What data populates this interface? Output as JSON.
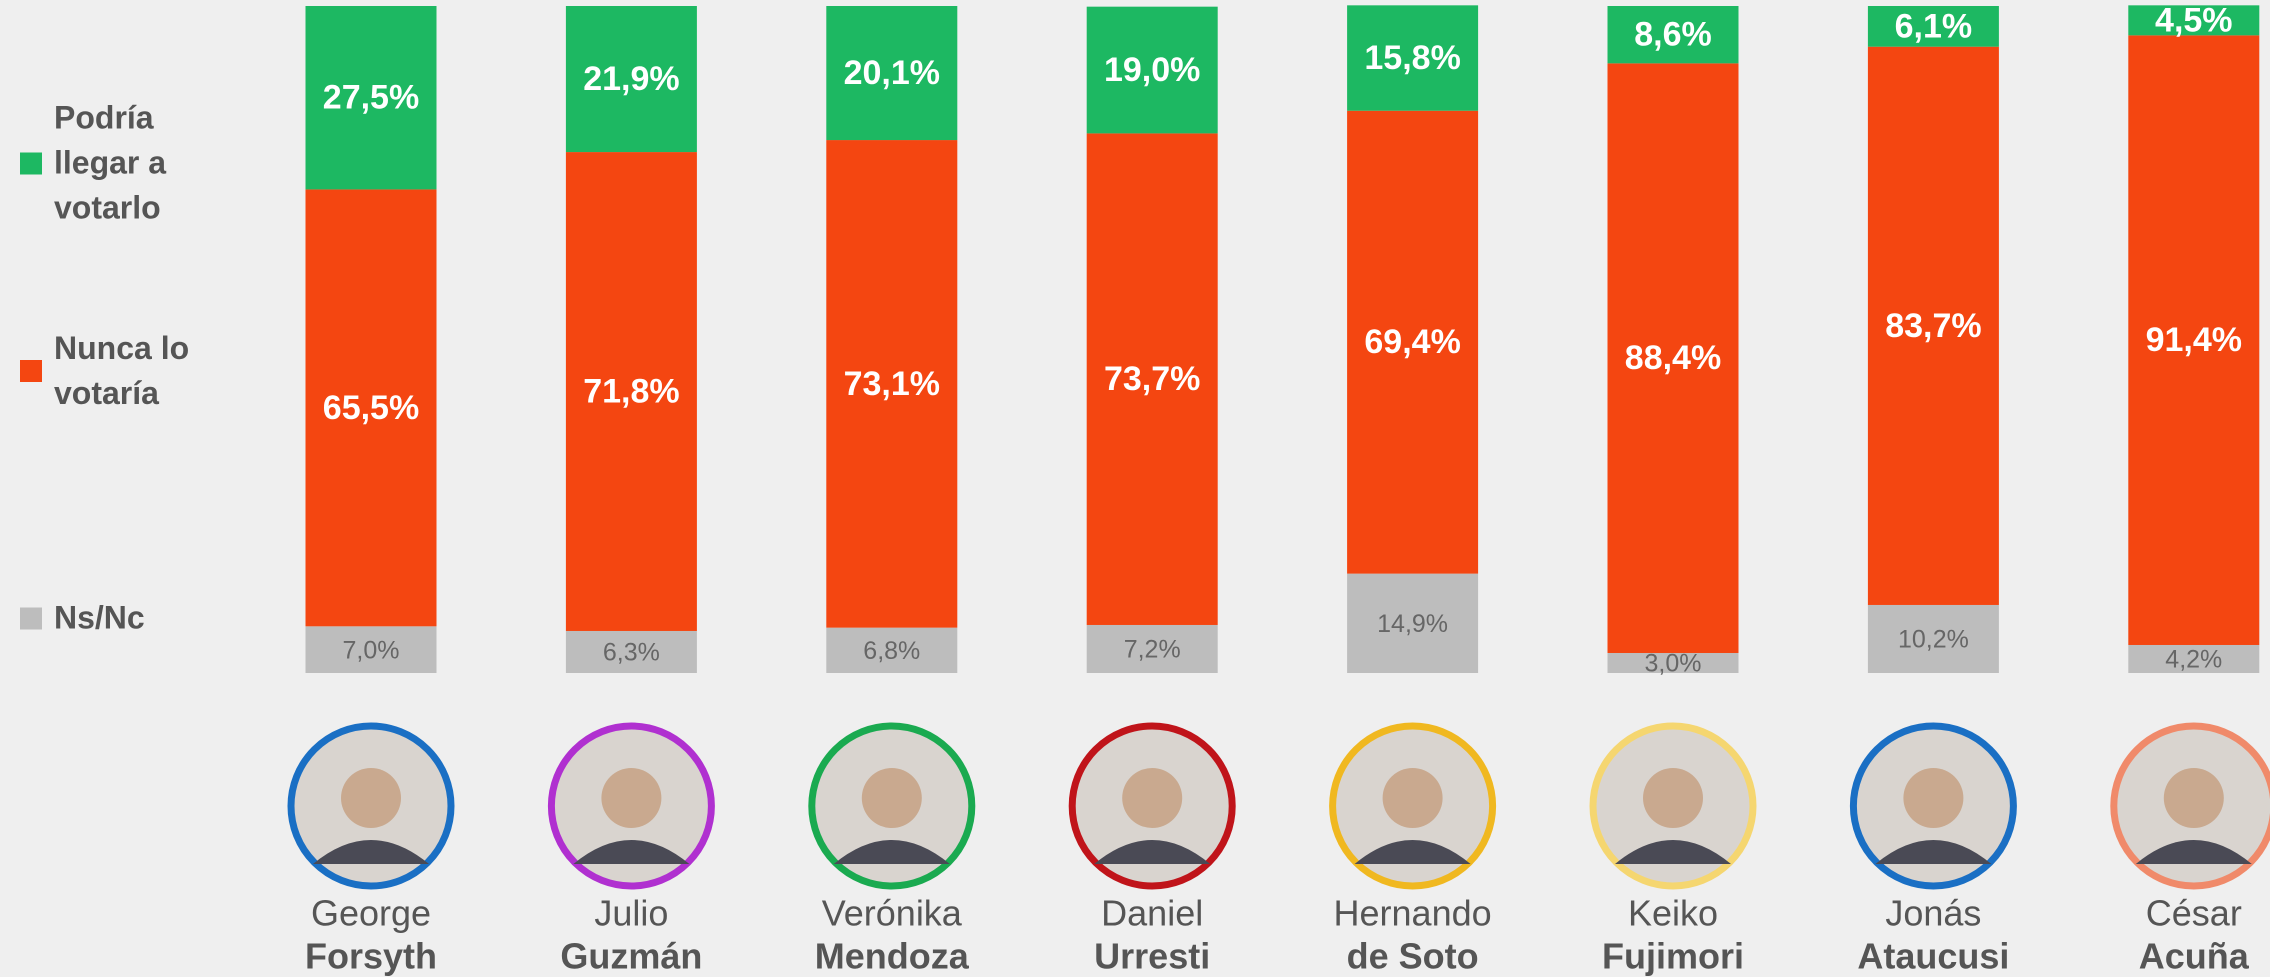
{
  "chart_data": {
    "type": "stacked-bar",
    "categories": [
      {
        "first": "George",
        "last": "Forsyth",
        "ring": "#1a6fc4"
      },
      {
        "first": "Julio",
        "last": "Guzmán",
        "ring": "#b030d0"
      },
      {
        "first": "Verónika",
        "last": "Mendoza",
        "ring": "#1aaa50"
      },
      {
        "first": "Daniel",
        "last": "Urresti",
        "ring": "#c0141a"
      },
      {
        "first": "Hernando",
        "last": "de Soto",
        "ring": "#f0b820"
      },
      {
        "first": "Keiko",
        "last": "Fujimori",
        "ring": "#f5d670"
      },
      {
        "first": "Jonás",
        "last": "Ataucusi",
        "ring": "#1a6fc4"
      },
      {
        "first": "César",
        "last": "Acuña",
        "ring": "#f08a6a"
      }
    ],
    "series": [
      {
        "name": "Ns/Nc",
        "color": "#bdbdbd",
        "label_color": "#666666",
        "values": [
          7.0,
          6.3,
          6.8,
          7.2,
          14.9,
          3.0,
          10.2,
          4.2
        ],
        "value_labels": [
          "7,0%",
          "6,3%",
          "6,8%",
          "7,2%",
          "14,9%",
          "3,0%",
          "10,2%",
          "4,2%"
        ]
      },
      {
        "name": "Nunca lo votaría",
        "color": "#f44611",
        "label_color": "#ffffff",
        "values": [
          65.5,
          71.8,
          73.1,
          73.7,
          69.4,
          88.4,
          83.7,
          91.4
        ],
        "value_labels": [
          "65,5%",
          "71,8%",
          "73,1%",
          "73,7%",
          "69,4%",
          "88,4%",
          "83,7%",
          "91,4%"
        ]
      },
      {
        "name": "Podría llegar a votarlo",
        "color": "#1db862",
        "label_color": "#ffffff",
        "values": [
          27.5,
          21.9,
          20.1,
          19.0,
          15.8,
          8.6,
          6.1,
          4.5
        ],
        "value_labels": [
          "27,5%",
          "21,9%",
          "20,1%",
          "19,0%",
          "15,8%",
          "8,6%",
          "6,1%",
          "4,5%"
        ]
      }
    ],
    "ylim": [
      0,
      100
    ]
  }
}
